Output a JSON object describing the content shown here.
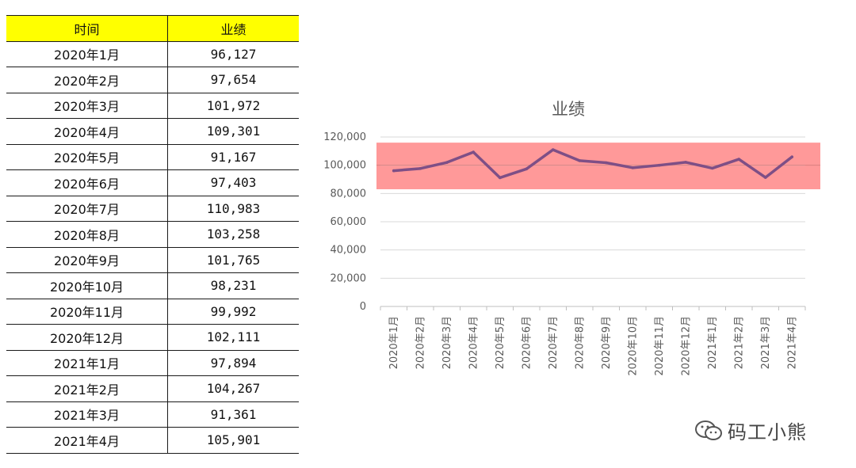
{
  "table": {
    "headers": [
      "时间",
      "业绩"
    ],
    "header_color": "#ffff00",
    "rows": [
      [
        "2020年1月",
        "96,127"
      ],
      [
        "2020年2月",
        "97,654"
      ],
      [
        "2020年3月",
        "101,972"
      ],
      [
        "2020年4月",
        "109,301"
      ],
      [
        "2020年5月",
        "91,167"
      ],
      [
        "2020年6月",
        "97,403"
      ],
      [
        "2020年7月",
        "110,983"
      ],
      [
        "2020年8月",
        "103,258"
      ],
      [
        "2020年9月",
        "101,765"
      ],
      [
        "2020年10月",
        "98,231"
      ],
      [
        "2020年11月",
        "99,992"
      ],
      [
        "2020年12月",
        "102,111"
      ],
      [
        "2021年1月",
        "97,894"
      ],
      [
        "2021年2月",
        "104,267"
      ],
      [
        "2021年3月",
        "91,361"
      ],
      [
        "2021年4月",
        "105,901"
      ]
    ]
  },
  "chart_data": {
    "type": "line",
    "title": "业绩",
    "categories": [
      "2020年1月",
      "2020年2月",
      "2020年3月",
      "2020年4月",
      "2020年5月",
      "2020年6月",
      "2020年7月",
      "2020年8月",
      "2020年9月",
      "2020年10月",
      "2020年11月",
      "2020年12月",
      "2021年1月",
      "2021年2月",
      "2021年3月",
      "2021年4月"
    ],
    "series": [
      {
        "values": [
          96127,
          97654,
          101972,
          109301,
          91167,
          97403,
          110983,
          103258,
          101765,
          98231,
          99992,
          102111,
          97894,
          104267,
          91361,
          105901
        ],
        "color": "#7e4f86"
      }
    ],
    "ylim": [
      0,
      120000
    ],
    "yticks": [
      "0",
      "20,000",
      "40,000",
      "60,000",
      "80,000",
      "100,000",
      "120,000"
    ],
    "band": {
      "low": 83000,
      "high": 116000,
      "color": "#ff9999"
    },
    "reference_line": 100000,
    "grid": true
  },
  "watermark": {
    "text": "码工小熊",
    "icon": "wechat-icon"
  }
}
